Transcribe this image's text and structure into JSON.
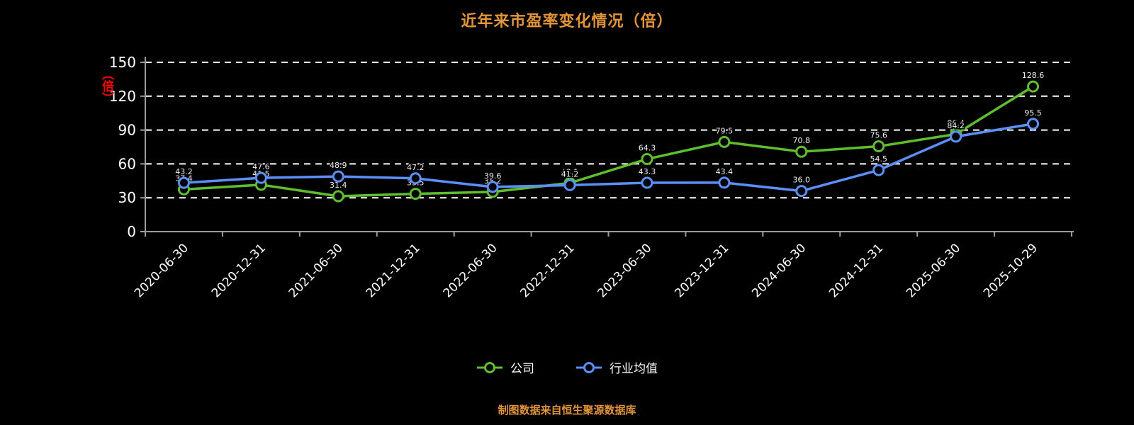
{
  "title": "近年来市盈率变化情况（倍）",
  "y_axis_unit": "（倍）",
  "source_note": "制图数据来自恒生聚源数据库",
  "colors": {
    "background": "#000000",
    "title": "#e2953b",
    "axis": "#9c9c9c",
    "gridline": "#ffffff",
    "tick_label": "#ffffff",
    "unit_label": "#ff0000",
    "company": "#5fbe2d",
    "industry": "#5b8ff9"
  },
  "legend": [
    {
      "id": "company",
      "label": "公司",
      "color": "#5fbe2d"
    },
    {
      "id": "industry-average",
      "label": "行业均值",
      "color": "#5b8ff9"
    }
  ],
  "chart_data": {
    "type": "line",
    "title": "近年来市盈率变化情况（倍）",
    "unit": "倍",
    "categories": [
      "2020-06-30",
      "2020-12-31",
      "2021-06-30",
      "2021-12-31",
      "2022-06-30",
      "2022-12-31",
      "2023-06-30",
      "2023-12-31",
      "2024-06-30",
      "2024-12-31",
      "2025-06-30",
      "2025-10-29"
    ],
    "series": [
      {
        "id": "company",
        "name": "公司",
        "color": "#5fbe2d",
        "values": [
          37.4,
          41.5,
          31.4,
          33.5,
          35.2,
          43.1,
          64.3,
          79.5,
          70.8,
          75.6,
          86.4,
          128.6
        ]
      },
      {
        "id": "industry-average",
        "name": "行业均值",
        "color": "#5b8ff9",
        "values": [
          43.2,
          47.6,
          48.9,
          47.2,
          39.6,
          41.2,
          43.3,
          43.4,
          36.0,
          54.5,
          84.2,
          95.5
        ]
      }
    ],
    "ylim": [
      0,
      150
    ],
    "yticks": [
      0,
      30,
      60,
      90,
      120,
      150
    ],
    "grid": "horizontal-dashed",
    "legend_position": "bottom",
    "x_tick_label_rotation": -45
  }
}
